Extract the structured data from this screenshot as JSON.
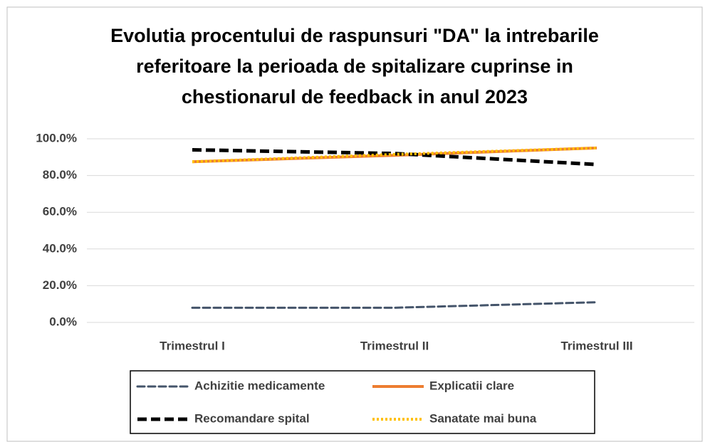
{
  "chart_data": {
    "type": "line",
    "title": [
      "Evolutia procentului de raspunsuri \"DA\" la intrebarile",
      "referitoare la perioada de spitalizare cuprinse in",
      "chestionarul de feedback  in anul 2023"
    ],
    "categories": [
      "Trimestrul I",
      "Trimestrul II",
      "Trimestrul III"
    ],
    "series": [
      {
        "name": "Achizitie medicamente",
        "color": "#44546a",
        "style": "dash-hollow",
        "values": [
          8,
          8,
          11
        ]
      },
      {
        "name": "Explicatii clare",
        "color": "#ed7d31",
        "style": "solid",
        "values": [
          87.5,
          91,
          95
        ]
      },
      {
        "name": "Recomandare spital",
        "color": "#000000",
        "style": "dash",
        "values": [
          94,
          92,
          86
        ]
      },
      {
        "name": "Sanatate mai buna",
        "color": "#ffc000",
        "style": "dot",
        "values": [
          87.5,
          91.5,
          95
        ]
      }
    ],
    "ylim": [
      0,
      100
    ],
    "yticks": [
      {
        "value": 0,
        "label": "0.0%"
      },
      {
        "value": 20,
        "label": "20.0%"
      },
      {
        "value": 40,
        "label": "40.0%"
      },
      {
        "value": 60,
        "label": "60.0%"
      },
      {
        "value": 80,
        "label": "80.0%"
      },
      {
        "value": 100,
        "label": "100.0%"
      }
    ],
    "grid": true,
    "legend": "bottom"
  }
}
